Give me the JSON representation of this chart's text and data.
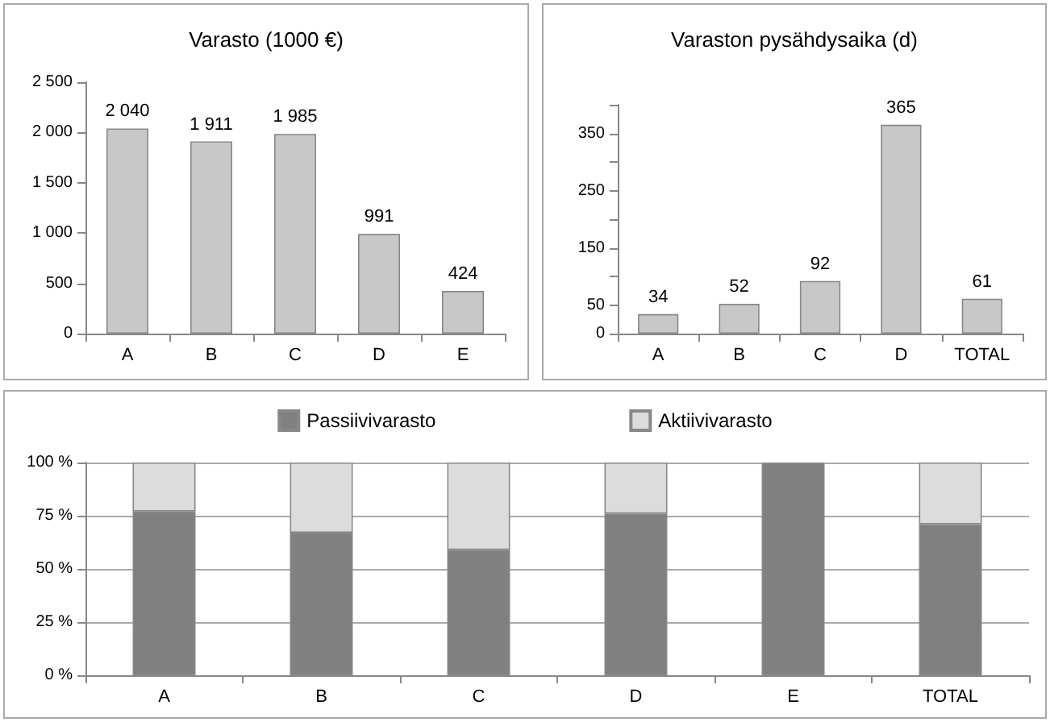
{
  "chart_data": [
    {
      "type": "bar",
      "title": "Varasto (1000 €)",
      "categories": [
        "A",
        "B",
        "C",
        "D",
        "E"
      ],
      "color": "#c8c8c8",
      "values": [
        2040,
        1911,
        1985,
        991,
        424
      ],
      "value_labels": [
        "2 040",
        "1 911",
        "1 985",
        "991",
        "424"
      ],
      "ylim": [
        0,
        2500
      ],
      "yticks": [
        0,
        500,
        {
          "value": 1000,
          "label": "1 000"
        },
        {
          "value": 1500,
          "label": "1 500"
        },
        {
          "value": 2000,
          "label": "2 000"
        },
        {
          "value": 2500,
          "label": "2 500"
        }
      ],
      "grid": false
    },
    {
      "type": "bar",
      "title": "Varaston pysähdysaika (d)",
      "categories": [
        "A",
        "B",
        "C",
        "D",
        "TOTAL"
      ],
      "color": "#c8c8c8",
      "values": [
        34,
        52,
        92,
        365,
        61
      ],
      "data_labels": true,
      "ylim": [
        0,
        400
      ],
      "yticks": [
        0,
        50,
        {
          "value": 100,
          "label": null
        },
        150,
        {
          "value": 200,
          "label": null
        },
        250,
        {
          "value": 300,
          "label": null
        },
        350,
        {
          "value": 400,
          "label": null
        }
      ],
      "grid": false
    },
    {
      "type": "bar",
      "stacked": true,
      "categories": [
        "A",
        "B",
        "C",
        "D",
        "E",
        "TOTAL"
      ],
      "legend": "top",
      "grid": "y",
      "series": [
        {
          "name": "Passiivivarasto",
          "color": "#808080",
          "values": [
            77,
            67,
            59,
            76,
            100,
            71
          ]
        },
        {
          "name": "Aktiivivarasto",
          "color": "#dcdcdc",
          "values": [
            23,
            33,
            41,
            24,
            null,
            29
          ]
        }
      ],
      "ylim": [
        0,
        100
      ],
      "yticks": [
        {
          "value": 0,
          "label": "0 %"
        },
        {
          "value": 25,
          "label": "25 %"
        },
        {
          "value": 50,
          "label": "50 %"
        },
        {
          "value": 75,
          "label": "75 %"
        },
        {
          "value": 100,
          "label": "100 %"
        }
      ]
    }
  ]
}
